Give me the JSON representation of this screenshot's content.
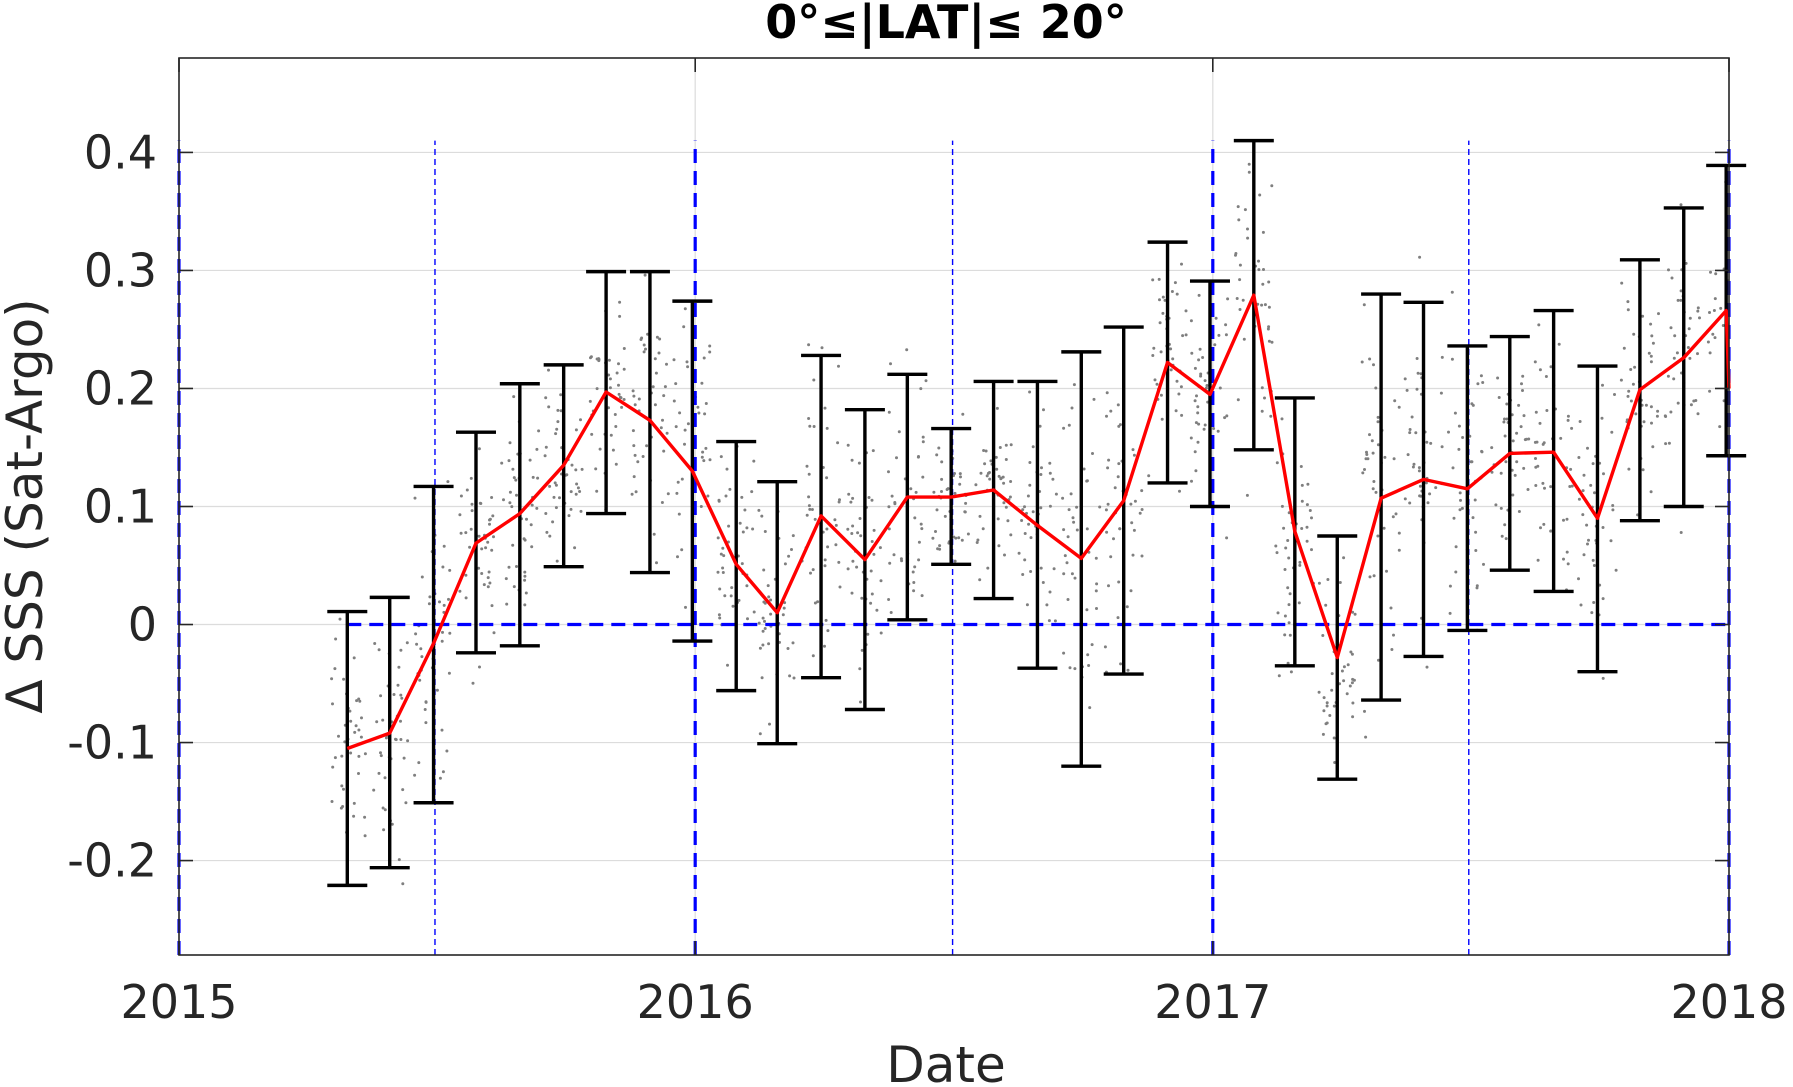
{
  "chart_data": {
    "type": "line",
    "title": "0°≤|LAT|≤ 20°",
    "xlabel": "Date",
    "ylabel": "Δ SSS (Sat-Argo)",
    "xlim": [
      "2015-01-01",
      "2018-01-01"
    ],
    "ylim": [
      -0.28,
      0.48
    ],
    "xticks": [
      "2015",
      "2016",
      "2017",
      "2018"
    ],
    "yticks": [
      -0.2,
      -0.1,
      0,
      0.1,
      0.2,
      0.3,
      0.4
    ],
    "ytick_labels": [
      "-0.2",
      "-0.1",
      "0",
      "0.1",
      "0.2",
      "0.3",
      "0.4"
    ],
    "grid": true,
    "colors": {
      "mean_line": "#ff0000",
      "error_bars": "#000000",
      "reference_lines": "#0000ff",
      "scatter": "#7f7f7f",
      "grid": "#dcdcdc"
    },
    "reference_lines": {
      "y": 0,
      "x_major": [
        "2015-01-01",
        "2016-01-01",
        "2017-01-01",
        "2018-01-01"
      ],
      "x_minor": [
        "2015-07-01",
        "2016-07-01",
        "2017-07-01"
      ]
    },
    "series": [
      {
        "x": [
          "2015-04-30",
          "2015-05-30",
          "2015-06-30",
          "2015-07-30",
          "2015-08-30",
          "2015-09-30",
          "2015-10-30",
          "2015-11-30",
          "2015-12-30",
          "2016-01-30",
          "2016-02-28",
          "2016-03-30",
          "2016-04-30",
          "2016-05-30",
          "2016-06-30",
          "2016-07-30",
          "2016-08-30",
          "2016-09-30",
          "2016-10-30",
          "2016-11-30",
          "2016-12-30",
          "2017-01-30",
          "2017-02-28",
          "2017-03-30",
          "2017-04-30",
          "2017-05-30",
          "2017-06-30",
          "2017-07-30",
          "2017-08-30",
          "2017-09-30",
          "2017-10-30",
          "2017-11-30",
          "2017-12-30"
        ],
        "mean": [
          -0.105,
          -0.092,
          -0.016,
          0.069,
          0.094,
          0.135,
          0.197,
          0.173,
          0.13,
          0.051,
          0.01,
          0.092,
          0.055,
          0.108,
          0.108,
          0.114,
          0.084,
          0.056,
          0.105,
          0.222,
          0.195,
          0.279,
          0.079,
          -0.028,
          0.107,
          0.123,
          0.115,
          0.145,
          0.146,
          0.09,
          0.199,
          0.226,
          0.266
        ],
        "err_low": [
          -0.221,
          -0.206,
          -0.151,
          -0.024,
          -0.018,
          0.049,
          0.094,
          0.044,
          -0.014,
          -0.056,
          -0.101,
          -0.045,
          -0.072,
          0.004,
          0.051,
          0.022,
          -0.037,
          -0.12,
          -0.042,
          0.12,
          0.1,
          0.148,
          -0.035,
          -0.131,
          -0.064,
          -0.027,
          -0.005,
          0.046,
          0.028,
          -0.04,
          0.088,
          0.1,
          0.143
        ],
        "err_high": [
          0.011,
          0.023,
          0.117,
          0.163,
          0.204,
          0.22,
          0.299,
          0.299,
          0.274,
          0.155,
          0.121,
          0.228,
          0.182,
          0.212,
          0.166,
          0.206,
          0.206,
          0.231,
          0.252,
          0.324,
          0.291,
          0.41,
          0.192,
          0.075,
          0.28,
          0.273,
          0.236,
          0.244,
          0.266,
          0.219,
          0.309,
          0.353,
          0.389
        ]
      }
    ],
    "end_point": {
      "x": "2018-01-01",
      "mean": 0.2
    }
  }
}
